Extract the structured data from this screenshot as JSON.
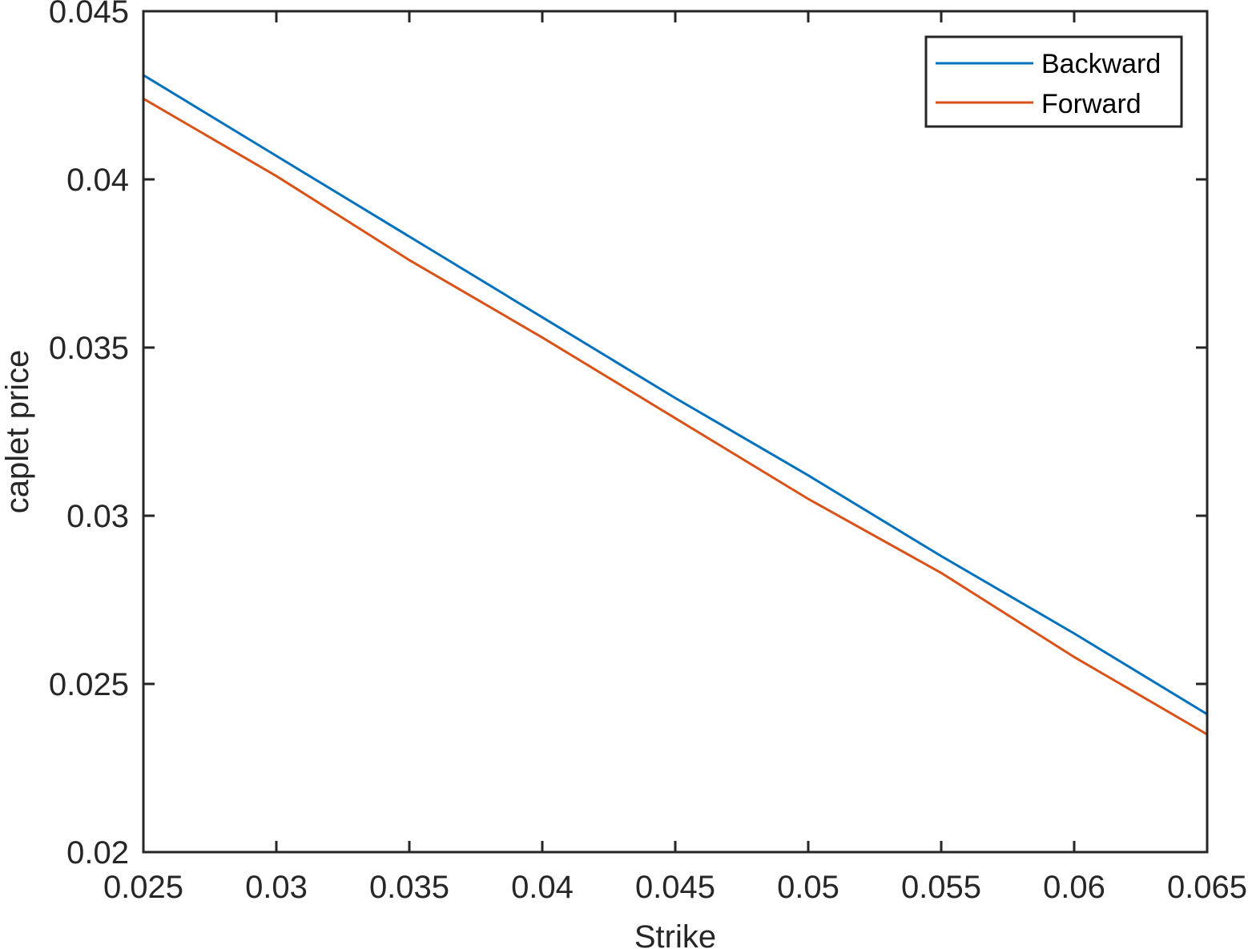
{
  "chart_data": {
    "type": "line",
    "title": "",
    "xlabel": "Strike",
    "ylabel": "caplet price",
    "xlim": [
      0.025,
      0.065
    ],
    "ylim": [
      0.02,
      0.045
    ],
    "xticks": [
      "0.025",
      "0.03",
      "0.035",
      "0.04",
      "0.045",
      "0.05",
      "0.055",
      "0.06",
      "0.065"
    ],
    "yticks": [
      "0.02",
      "0.025",
      "0.03",
      "0.035",
      "0.04",
      "0.045"
    ],
    "grid": false,
    "legend_position": "top-right",
    "x": [
      0.025,
      0.03,
      0.035,
      0.04,
      0.045,
      0.05,
      0.055,
      0.06,
      0.065
    ],
    "series": [
      {
        "name": "Backward",
        "color": "#0072BD",
        "values": [
          0.0431,
          0.0407,
          0.0383,
          0.0359,
          0.0335,
          0.0312,
          0.0288,
          0.0265,
          0.0241
        ]
      },
      {
        "name": "Forward",
        "color": "#D95319",
        "values": [
          0.0424,
          0.0401,
          0.0376,
          0.0353,
          0.0329,
          0.0305,
          0.0283,
          0.0258,
          0.0235
        ]
      }
    ]
  }
}
